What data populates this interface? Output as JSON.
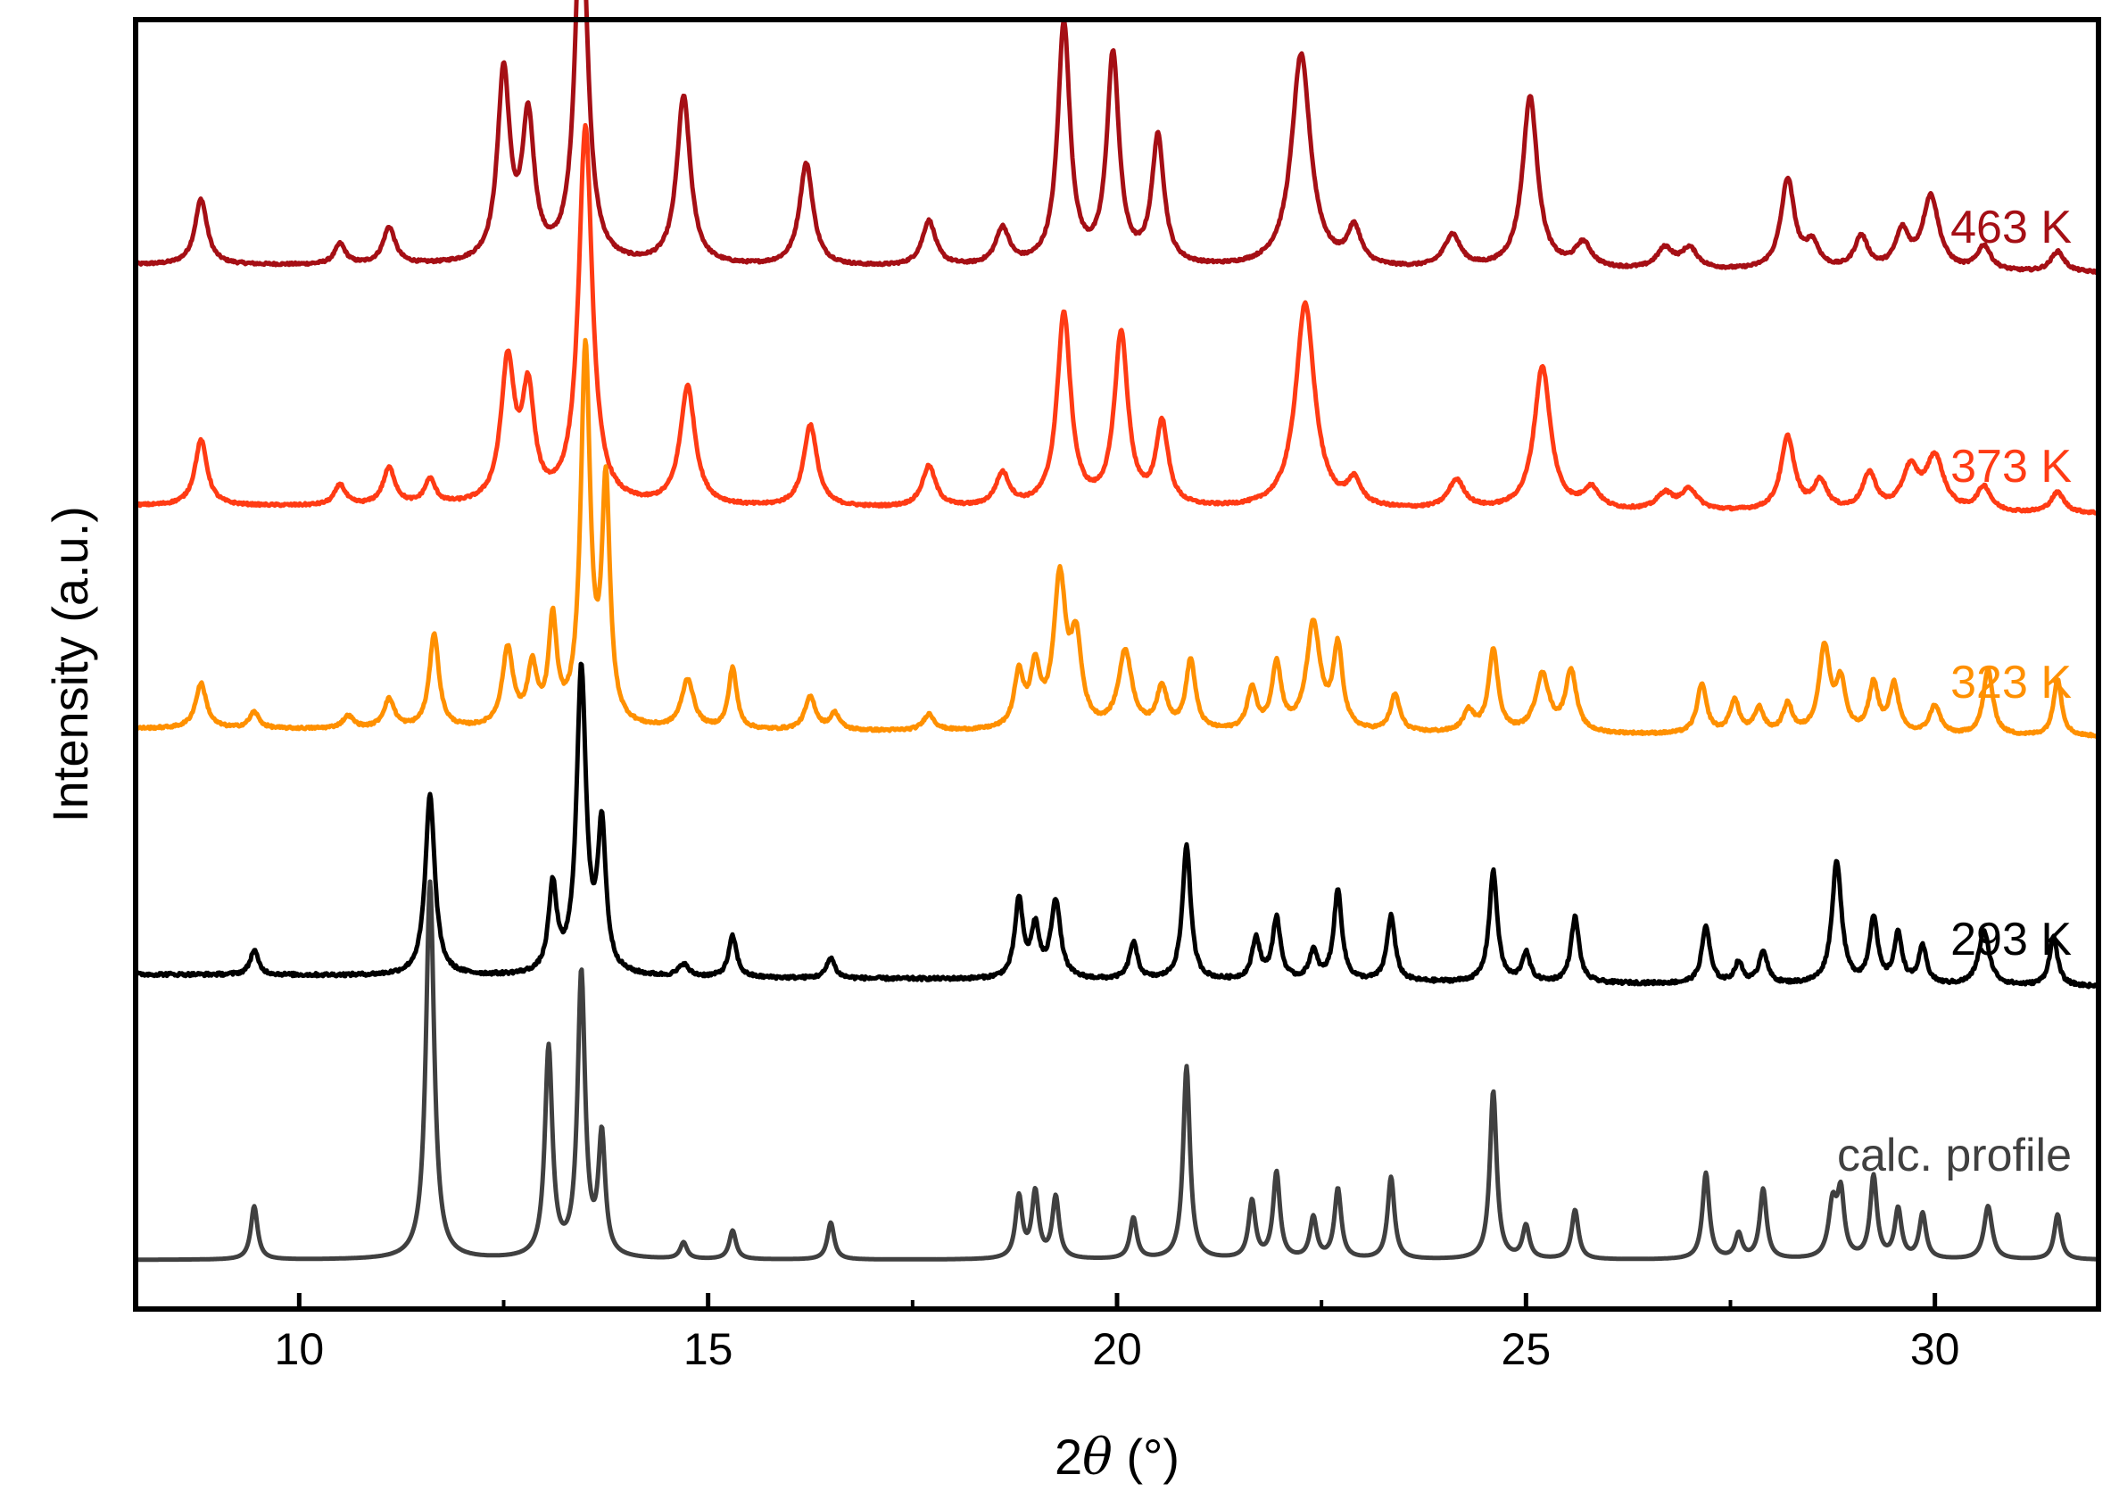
{
  "chart_data": {
    "type": "line",
    "title": "",
    "xlabel": "2θ (°)",
    "xlabel_parts": {
      "prefix": "2",
      "symbol": "θ",
      "suffix": " (°)"
    },
    "ylabel": "Intensity (a.u.)",
    "xlim": [
      8,
      32
    ],
    "xticks": [
      10,
      15,
      20,
      25,
      30
    ],
    "y_tick_labels": false,
    "grid": false,
    "legend": "none; each series labeled at right end above its trace",
    "series": [
      {
        "name": "463 K",
        "color": "#a50f15",
        "baseline": 0.05,
        "drift": -0.02,
        "noise": 0.006,
        "peaks": [
          [
            8.8,
            0.16,
            0.09
          ],
          [
            10.5,
            0.05,
            0.08
          ],
          [
            11.1,
            0.09,
            0.09
          ],
          [
            12.5,
            0.46,
            0.09
          ],
          [
            12.8,
            0.34,
            0.09
          ],
          [
            13.45,
            0.91,
            0.09
          ],
          [
            14.7,
            0.41,
            0.1
          ],
          [
            16.2,
            0.25,
            0.1
          ],
          [
            17.7,
            0.11,
            0.1
          ],
          [
            18.6,
            0.09,
            0.1
          ],
          [
            19.35,
            0.59,
            0.09
          ],
          [
            19.95,
            0.51,
            0.09
          ],
          [
            20.5,
            0.31,
            0.09
          ],
          [
            22.25,
            0.52,
            0.14
          ],
          [
            22.9,
            0.09,
            0.1
          ],
          [
            24.1,
            0.08,
            0.12
          ],
          [
            25.05,
            0.42,
            0.11
          ],
          [
            25.7,
            0.06,
            0.12
          ],
          [
            26.7,
            0.05,
            0.12
          ],
          [
            27.0,
            0.05,
            0.12
          ],
          [
            28.2,
            0.22,
            0.1
          ],
          [
            28.5,
            0.06,
            0.1
          ],
          [
            29.1,
            0.08,
            0.1
          ],
          [
            29.6,
            0.09,
            0.1
          ],
          [
            29.95,
            0.18,
            0.12
          ],
          [
            30.6,
            0.06,
            0.1
          ],
          [
            31.5,
            0.05,
            0.1
          ]
        ]
      },
      {
        "name": "373 K",
        "color": "#ff3b14",
        "baseline": 0.05,
        "drift": -0.02,
        "noise": 0.006,
        "peaks": [
          [
            8.8,
            0.16,
            0.09
          ],
          [
            10.5,
            0.05,
            0.08
          ],
          [
            11.1,
            0.09,
            0.09
          ],
          [
            11.6,
            0.06,
            0.08
          ],
          [
            12.55,
            0.34,
            0.1
          ],
          [
            12.8,
            0.26,
            0.09
          ],
          [
            13.5,
            0.92,
            0.1
          ],
          [
            14.75,
            0.29,
            0.11
          ],
          [
            16.25,
            0.2,
            0.1
          ],
          [
            17.7,
            0.1,
            0.1
          ],
          [
            18.6,
            0.08,
            0.1
          ],
          [
            19.35,
            0.47,
            0.1
          ],
          [
            20.05,
            0.42,
            0.1
          ],
          [
            20.55,
            0.2,
            0.09
          ],
          [
            22.3,
            0.5,
            0.14
          ],
          [
            22.9,
            0.06,
            0.1
          ],
          [
            24.15,
            0.07,
            0.12
          ],
          [
            25.2,
            0.35,
            0.12
          ],
          [
            25.8,
            0.05,
            0.12
          ],
          [
            26.7,
            0.04,
            0.12
          ],
          [
            27.0,
            0.05,
            0.12
          ],
          [
            28.2,
            0.18,
            0.1
          ],
          [
            28.6,
            0.07,
            0.1
          ],
          [
            29.2,
            0.09,
            0.1
          ],
          [
            29.7,
            0.1,
            0.12
          ],
          [
            30.0,
            0.13,
            0.13
          ],
          [
            30.6,
            0.06,
            0.1
          ],
          [
            31.5,
            0.05,
            0.1
          ]
        ]
      },
      {
        "name": "323 K",
        "color": "#ff9000",
        "baseline": 0.04,
        "drift": -0.02,
        "noise": 0.006,
        "peaks": [
          [
            8.8,
            0.11,
            0.08
          ],
          [
            9.45,
            0.04,
            0.07
          ],
          [
            10.6,
            0.03,
            0.08
          ],
          [
            11.1,
            0.07,
            0.08
          ],
          [
            11.65,
            0.23,
            0.07
          ],
          [
            12.55,
            0.19,
            0.08
          ],
          [
            12.85,
            0.14,
            0.07
          ],
          [
            13.1,
            0.25,
            0.06
          ],
          [
            13.5,
            0.91,
            0.07
          ],
          [
            13.75,
            0.57,
            0.06
          ],
          [
            14.75,
            0.12,
            0.09
          ],
          [
            15.3,
            0.15,
            0.06
          ],
          [
            16.25,
            0.08,
            0.08
          ],
          [
            16.55,
            0.04,
            0.07
          ],
          [
            17.7,
            0.04,
            0.08
          ],
          [
            18.8,
            0.13,
            0.07
          ],
          [
            19.0,
            0.14,
            0.07
          ],
          [
            19.3,
            0.36,
            0.09
          ],
          [
            19.5,
            0.2,
            0.08
          ],
          [
            20.1,
            0.19,
            0.1
          ],
          [
            20.55,
            0.1,
            0.08
          ],
          [
            20.9,
            0.17,
            0.07
          ],
          [
            21.65,
            0.1,
            0.07
          ],
          [
            21.95,
            0.16,
            0.07
          ],
          [
            22.4,
            0.26,
            0.1
          ],
          [
            22.7,
            0.2,
            0.07
          ],
          [
            23.4,
            0.09,
            0.07
          ],
          [
            24.3,
            0.05,
            0.08
          ],
          [
            24.6,
            0.2,
            0.07
          ],
          [
            25.2,
            0.14,
            0.1
          ],
          [
            25.55,
            0.15,
            0.08
          ],
          [
            27.15,
            0.12,
            0.07
          ],
          [
            27.55,
            0.08,
            0.07
          ],
          [
            27.85,
            0.06,
            0.07
          ],
          [
            28.2,
            0.07,
            0.07
          ],
          [
            28.65,
            0.21,
            0.08
          ],
          [
            28.85,
            0.12,
            0.07
          ],
          [
            29.25,
            0.12,
            0.07
          ],
          [
            29.5,
            0.12,
            0.07
          ],
          [
            30.0,
            0.07,
            0.08
          ],
          [
            30.65,
            0.16,
            0.07
          ],
          [
            31.5,
            0.14,
            0.06
          ]
        ]
      },
      {
        "name": "293 K",
        "color": "#000000",
        "baseline": 0.05,
        "drift": -0.03,
        "noise": 0.008,
        "peaks": [
          [
            9.45,
            0.06,
            0.06
          ],
          [
            11.6,
            0.44,
            0.07
          ],
          [
            13.1,
            0.21,
            0.06
          ],
          [
            13.45,
            0.74,
            0.07
          ],
          [
            13.7,
            0.35,
            0.06
          ],
          [
            14.7,
            0.03,
            0.07
          ],
          [
            15.3,
            0.1,
            0.06
          ],
          [
            16.5,
            0.05,
            0.06
          ],
          [
            18.8,
            0.19,
            0.06
          ],
          [
            19.0,
            0.12,
            0.06
          ],
          [
            19.25,
            0.19,
            0.07
          ],
          [
            20.2,
            0.09,
            0.06
          ],
          [
            20.85,
            0.33,
            0.06
          ],
          [
            21.7,
            0.1,
            0.06
          ],
          [
            21.95,
            0.15,
            0.06
          ],
          [
            22.4,
            0.07,
            0.06
          ],
          [
            22.7,
            0.22,
            0.06
          ],
          [
            23.35,
            0.16,
            0.06
          ],
          [
            24.6,
            0.27,
            0.06
          ],
          [
            25.0,
            0.07,
            0.06
          ],
          [
            25.6,
            0.16,
            0.06
          ],
          [
            27.2,
            0.14,
            0.06
          ],
          [
            27.6,
            0.05,
            0.06
          ],
          [
            27.9,
            0.08,
            0.06
          ],
          [
            28.8,
            0.3,
            0.07
          ],
          [
            29.25,
            0.16,
            0.06
          ],
          [
            29.55,
            0.12,
            0.06
          ],
          [
            29.85,
            0.09,
            0.06
          ],
          [
            30.6,
            0.13,
            0.08
          ],
          [
            31.45,
            0.12,
            0.06
          ]
        ]
      },
      {
        "name": "calc. profile",
        "color": "#404040",
        "baseline": 0.0,
        "drift": 0.0,
        "noise": 0.0,
        "peaks": [
          [
            9.45,
            0.13,
            0.05
          ],
          [
            11.6,
            0.92,
            0.06
          ],
          [
            13.05,
            0.51,
            0.055
          ],
          [
            13.45,
            0.69,
            0.055
          ],
          [
            13.7,
            0.29,
            0.05
          ],
          [
            14.7,
            0.04,
            0.05
          ],
          [
            15.3,
            0.07,
            0.05
          ],
          [
            16.5,
            0.09,
            0.05
          ],
          [
            18.8,
            0.15,
            0.05
          ],
          [
            19.0,
            0.16,
            0.05
          ],
          [
            19.25,
            0.15,
            0.05
          ],
          [
            20.2,
            0.1,
            0.05
          ],
          [
            20.85,
            0.47,
            0.05
          ],
          [
            21.65,
            0.14,
            0.05
          ],
          [
            21.95,
            0.21,
            0.05
          ],
          [
            22.4,
            0.1,
            0.05
          ],
          [
            22.7,
            0.17,
            0.05
          ],
          [
            23.35,
            0.2,
            0.05
          ],
          [
            24.6,
            0.41,
            0.05
          ],
          [
            25.0,
            0.08,
            0.05
          ],
          [
            25.6,
            0.12,
            0.05
          ],
          [
            27.2,
            0.21,
            0.05
          ],
          [
            27.6,
            0.06,
            0.05
          ],
          [
            27.9,
            0.17,
            0.05
          ],
          [
            28.75,
            0.13,
            0.06
          ],
          [
            28.85,
            0.15,
            0.05
          ],
          [
            29.25,
            0.2,
            0.05
          ],
          [
            29.55,
            0.12,
            0.05
          ],
          [
            29.85,
            0.11,
            0.05
          ],
          [
            30.65,
            0.13,
            0.06
          ],
          [
            31.5,
            0.11,
            0.05
          ]
        ]
      }
    ]
  }
}
